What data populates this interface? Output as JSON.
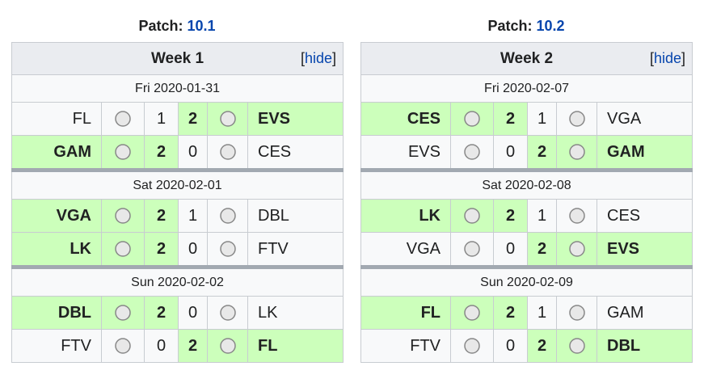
{
  "panels": [
    {
      "patch_label": "Patch:",
      "patch": "10.1",
      "week": "Week 1",
      "toggle": {
        "open": "[",
        "label": "hide",
        "close": "]"
      },
      "days": [
        {
          "date": "Fri 2020-01-31",
          "matches": [
            {
              "home": "FL",
              "home_score": 1,
              "away_score": 2,
              "away": "EVS"
            },
            {
              "home": "GAM",
              "home_score": 2,
              "away_score": 0,
              "away": "CES"
            }
          ]
        },
        {
          "date": "Sat 2020-02-01",
          "matches": [
            {
              "home": "VGA",
              "home_score": 2,
              "away_score": 1,
              "away": "DBL"
            },
            {
              "home": "LK",
              "home_score": 2,
              "away_score": 0,
              "away": "FTV"
            }
          ]
        },
        {
          "date": "Sun 2020-02-02",
          "matches": [
            {
              "home": "DBL",
              "home_score": 2,
              "away_score": 0,
              "away": "LK"
            },
            {
              "home": "FTV",
              "home_score": 0,
              "away_score": 2,
              "away": "FL"
            }
          ]
        }
      ]
    },
    {
      "patch_label": "Patch:",
      "patch": "10.2",
      "week": "Week 2",
      "toggle": {
        "open": "[",
        "label": "hide",
        "close": "]"
      },
      "days": [
        {
          "date": "Fri 2020-02-07",
          "matches": [
            {
              "home": "CES",
              "home_score": 2,
              "away_score": 1,
              "away": "VGA"
            },
            {
              "home": "EVS",
              "home_score": 0,
              "away_score": 2,
              "away": "GAM"
            }
          ]
        },
        {
          "date": "Sat 2020-02-08",
          "matches": [
            {
              "home": "LK",
              "home_score": 2,
              "away_score": 1,
              "away": "CES"
            },
            {
              "home": "VGA",
              "home_score": 0,
              "away_score": 2,
              "away": "EVS"
            }
          ]
        },
        {
          "date": "Sun 2020-02-09",
          "matches": [
            {
              "home": "FL",
              "home_score": 2,
              "away_score": 1,
              "away": "GAM"
            },
            {
              "home": "FTV",
              "home_score": 0,
              "away_score": 2,
              "away": "DBL"
            }
          ]
        }
      ]
    }
  ]
}
